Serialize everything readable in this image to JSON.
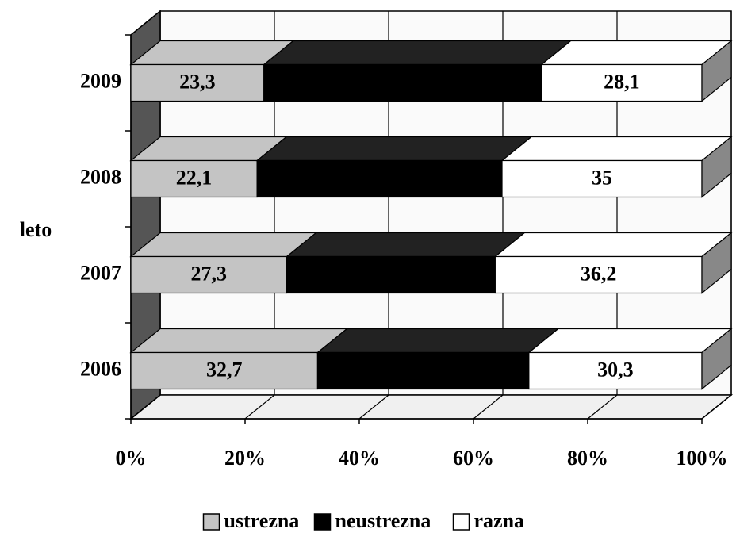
{
  "chart_data": {
    "type": "stacked-bar-3d-horizontal",
    "y_label": "leto",
    "categories": [
      "2006",
      "2007",
      "2008",
      "2009"
    ],
    "series": [
      {
        "name": "ustrezna",
        "color": "#c4c4c4",
        "values": [
          32.7,
          27.3,
          22.1,
          23.3
        ],
        "value_labels": [
          "32,7",
          "27,3",
          "22,1",
          "23,3"
        ]
      },
      {
        "name": "neustrezna",
        "color": "#000000",
        "values": [
          37.0,
          36.5,
          42.9,
          48.6
        ]
      },
      {
        "name": "razna",
        "color": "#ffffff",
        "values": [
          30.3,
          36.2,
          35,
          28.1
        ],
        "value_labels": [
          "30,3",
          "36,2",
          "35",
          "28,1"
        ]
      }
    ],
    "xlim": [
      0,
      100
    ],
    "xticks": [
      {
        "value": 0,
        "label": "0%"
      },
      {
        "value": 20,
        "label": "20%"
      },
      {
        "value": 40,
        "label": "40%"
      },
      {
        "value": 60,
        "label": "60%"
      },
      {
        "value": 80,
        "label": "80%"
      },
      {
        "value": 100,
        "label": "100%"
      }
    ],
    "grid": true,
    "legend": "bottom"
  }
}
